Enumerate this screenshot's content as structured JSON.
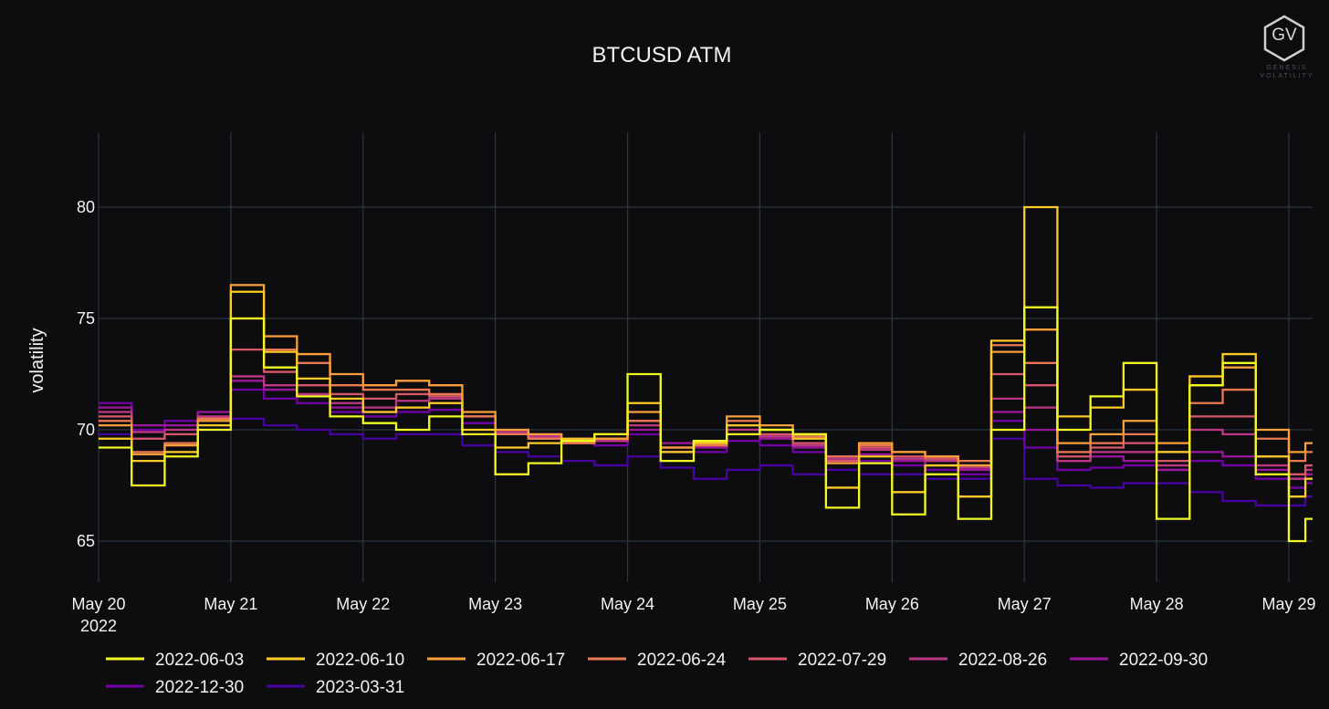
{
  "brand": {
    "logo_mark": "GV",
    "logo_line1": "GENESIS",
    "logo_line2": "VOLATILITY"
  },
  "chart_data": {
    "type": "line",
    "title": "BTCUSD ATM",
    "xlabel": "",
    "ylabel": "volatility",
    "xlim": [
      "2022-05-20",
      "2022-05-29T03:00"
    ],
    "ylim": [
      63,
      84
    ],
    "x_ticks": [
      {
        "date": "2022-05-20",
        "label": "May 20",
        "sublabel": "2022"
      },
      {
        "date": "2022-05-21",
        "label": "May 21"
      },
      {
        "date": "2022-05-22",
        "label": "May 22"
      },
      {
        "date": "2022-05-23",
        "label": "May 23"
      },
      {
        "date": "2022-05-24",
        "label": "May 24"
      },
      {
        "date": "2022-05-25",
        "label": "May 25"
      },
      {
        "date": "2022-05-26",
        "label": "May 26"
      },
      {
        "date": "2022-05-27",
        "label": "May 27"
      },
      {
        "date": "2022-05-28",
        "label": "May 28"
      },
      {
        "date": "2022-05-29",
        "label": "May 29"
      }
    ],
    "y_ticks": [
      65,
      70,
      75,
      80
    ],
    "grid": true,
    "legend_position": "bottom",
    "line_shape": "step",
    "x": [
      "2022-05-20T00:00",
      "2022-05-20T06:00",
      "2022-05-20T12:00",
      "2022-05-20T18:00",
      "2022-05-21T00:00",
      "2022-05-21T06:00",
      "2022-05-21T12:00",
      "2022-05-21T18:00",
      "2022-05-22T00:00",
      "2022-05-22T06:00",
      "2022-05-22T12:00",
      "2022-05-22T18:00",
      "2022-05-23T00:00",
      "2022-05-23T06:00",
      "2022-05-23T12:00",
      "2022-05-23T18:00",
      "2022-05-24T00:00",
      "2022-05-24T06:00",
      "2022-05-24T12:00",
      "2022-05-24T18:00",
      "2022-05-25T00:00",
      "2022-05-25T06:00",
      "2022-05-25T12:00",
      "2022-05-25T18:00",
      "2022-05-26T00:00",
      "2022-05-26T06:00",
      "2022-05-26T12:00",
      "2022-05-26T18:00",
      "2022-05-27T00:00",
      "2022-05-27T06:00",
      "2022-05-27T12:00",
      "2022-05-27T18:00",
      "2022-05-28T00:00",
      "2022-05-28T06:00",
      "2022-05-28T12:00",
      "2022-05-28T18:00",
      "2022-05-29T00:00",
      "2022-05-29T03:00"
    ],
    "series": [
      {
        "name": "2022-06-03",
        "color": "#f0f921",
        "values": [
          69.2,
          67.5,
          68.8,
          70.0,
          75.0,
          72.8,
          71.5,
          70.6,
          70.3,
          70.0,
          70.6,
          69.8,
          68.0,
          68.5,
          69.5,
          69.8,
          72.5,
          68.6,
          69.5,
          69.8,
          70.0,
          69.8,
          66.5,
          68.5,
          66.2,
          68.0,
          66.0,
          70.0,
          75.5,
          70.0,
          71.5,
          73.0,
          66.0,
          72.0,
          73.0,
          68.0,
          65.0,
          66.0
        ]
      },
      {
        "name": "2022-06-10",
        "color": "#fdca26",
        "values": [
          69.6,
          68.6,
          69.0,
          70.2,
          76.2,
          73.5,
          72.3,
          71.4,
          70.8,
          71.0,
          71.2,
          70.0,
          69.2,
          69.4,
          69.6,
          69.8,
          71.2,
          69.0,
          69.4,
          70.2,
          70.0,
          69.6,
          67.4,
          68.8,
          67.2,
          68.4,
          67.0,
          74.0,
          80.0,
          70.6,
          71.0,
          71.8,
          69.0,
          72.4,
          73.4,
          68.8,
          67.0,
          67.8
        ]
      },
      {
        "name": "2022-06-17",
        "color": "#fb9f3a",
        "values": [
          70.2,
          68.9,
          69.3,
          70.4,
          76.5,
          74.2,
          73.4,
          72.5,
          72.0,
          72.2,
          72.0,
          70.8,
          70.0,
          69.8,
          69.5,
          69.6,
          70.8,
          69.2,
          69.5,
          70.6,
          70.2,
          69.8,
          68.5,
          69.4,
          69.0,
          68.8,
          68.4,
          73.5,
          74.5,
          69.4,
          69.8,
          70.4,
          69.4,
          72.0,
          72.8,
          70.0,
          69.0,
          69.4
        ]
      },
      {
        "name": "2022-06-24",
        "color": "#ed7953",
        "values": [
          70.4,
          69.0,
          69.4,
          70.5,
          75.0,
          73.6,
          73.0,
          72.0,
          71.8,
          71.8,
          71.6,
          70.6,
          69.8,
          69.6,
          69.4,
          69.6,
          70.4,
          69.0,
          69.3,
          70.4,
          70.0,
          69.7,
          68.8,
          69.3,
          69.0,
          68.8,
          68.6,
          73.8,
          73.0,
          69.0,
          69.4,
          69.8,
          69.0,
          71.2,
          71.8,
          69.6,
          68.6,
          69.0
        ]
      },
      {
        "name": "2022-07-29",
        "color": "#d8576b",
        "values": [
          70.6,
          69.6,
          69.8,
          70.5,
          73.6,
          72.6,
          72.0,
          71.6,
          71.4,
          71.6,
          71.5,
          70.6,
          69.8,
          69.6,
          69.4,
          69.6,
          70.4,
          69.2,
          69.4,
          70.2,
          69.8,
          69.4,
          68.6,
          69.2,
          68.8,
          68.7,
          68.4,
          72.5,
          72.0,
          68.8,
          69.2,
          69.4,
          68.6,
          70.6,
          70.6,
          68.8,
          68.0,
          68.4
        ]
      },
      {
        "name": "2022-08-26",
        "color": "#bd3786",
        "values": [
          70.8,
          69.9,
          70.0,
          70.6,
          72.4,
          72.0,
          71.6,
          71.2,
          71.0,
          71.3,
          71.4,
          70.6,
          69.9,
          69.7,
          69.4,
          69.5,
          70.2,
          69.2,
          69.3,
          70.0,
          69.7,
          69.3,
          68.7,
          69.1,
          68.7,
          68.6,
          68.3,
          71.4,
          71.0,
          68.6,
          69.0,
          69.0,
          68.4,
          70.0,
          69.8,
          68.4,
          67.8,
          68.2
        ]
      },
      {
        "name": "2022-09-30",
        "color": "#9c179e",
        "values": [
          71.0,
          70.2,
          70.2,
          70.8,
          72.2,
          71.8,
          71.5,
          71.0,
          70.8,
          71.0,
          71.2,
          70.6,
          70.0,
          69.8,
          69.6,
          69.5,
          70.0,
          69.4,
          69.2,
          69.8,
          69.6,
          69.2,
          68.8,
          68.9,
          68.6,
          68.4,
          68.2,
          70.8,
          70.0,
          68.6,
          68.8,
          68.6,
          68.2,
          69.0,
          68.8,
          68.2,
          67.8,
          68.0
        ]
      },
      {
        "name": "2022-12-30",
        "color": "#7201a8",
        "values": [
          71.2,
          70.0,
          70.4,
          70.6,
          71.8,
          71.4,
          71.2,
          70.8,
          70.6,
          70.8,
          70.9,
          70.3,
          69.8,
          69.7,
          69.4,
          69.3,
          69.8,
          69.0,
          69.0,
          69.5,
          69.3,
          69.0,
          68.6,
          68.6,
          68.4,
          68.2,
          68.0,
          70.4,
          69.2,
          68.2,
          68.3,
          68.4,
          68.2,
          68.6,
          68.4,
          67.8,
          67.4,
          67.6
        ]
      },
      {
        "name": "2023-03-31",
        "color": "#46039f",
        "values": [
          69.8,
          69.6,
          69.8,
          70.0,
          70.5,
          70.2,
          70.0,
          69.8,
          69.6,
          69.8,
          69.8,
          69.3,
          69.0,
          68.8,
          68.6,
          68.4,
          68.8,
          68.3,
          67.8,
          68.2,
          68.4,
          68.0,
          68.2,
          68.0,
          68.0,
          67.8,
          67.8,
          69.6,
          67.8,
          67.5,
          67.4,
          67.6,
          67.6,
          67.2,
          66.8,
          66.6,
          66.6,
          67.0
        ]
      }
    ]
  }
}
